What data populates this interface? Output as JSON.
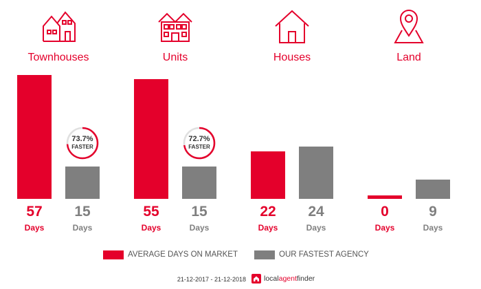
{
  "colors": {
    "market": "#e4002b",
    "agency": "#7f7f7f"
  },
  "categories": [
    {
      "label": "Townhouses",
      "icon": "townhouse-icon",
      "market_value": "57",
      "agency_value": "15",
      "unit": "Days",
      "faster_pct": "73.7%",
      "faster_label": "FASTER"
    },
    {
      "label": "Units",
      "icon": "units-building-icon",
      "market_value": "55",
      "agency_value": "15",
      "unit": "Days",
      "faster_pct": "72.7%",
      "faster_label": "FASTER"
    },
    {
      "label": "Houses",
      "icon": "house-icon",
      "market_value": "22",
      "agency_value": "24",
      "unit": "Days"
    },
    {
      "label": "Land",
      "icon": "map-pin-icon",
      "market_value": "0",
      "agency_value": "9",
      "unit": "Days"
    }
  ],
  "chart_data": {
    "type": "bar",
    "categories": [
      "Townhouses",
      "Units",
      "Houses",
      "Land"
    ],
    "series": [
      {
        "name": "AVERAGE DAYS ON MARKET",
        "values": [
          57,
          55,
          22,
          0
        ]
      },
      {
        "name": "OUR FASTEST AGENCY",
        "values": [
          15,
          15,
          24,
          9
        ]
      }
    ],
    "faster_pct": [
      73.7,
      72.7,
      null,
      null
    ],
    "ylim": [
      0,
      57
    ],
    "legend": "bottom",
    "grid": false
  },
  "legend": {
    "market_label": "AVERAGE DAYS ON MARKET",
    "agency_label": "OUR FASTEST AGENCY"
  },
  "footer": {
    "date_range": "21-12-2017 - 21-12-2018",
    "brand_part1": "local",
    "brand_part2": "agent",
    "brand_part3": "finder"
  }
}
